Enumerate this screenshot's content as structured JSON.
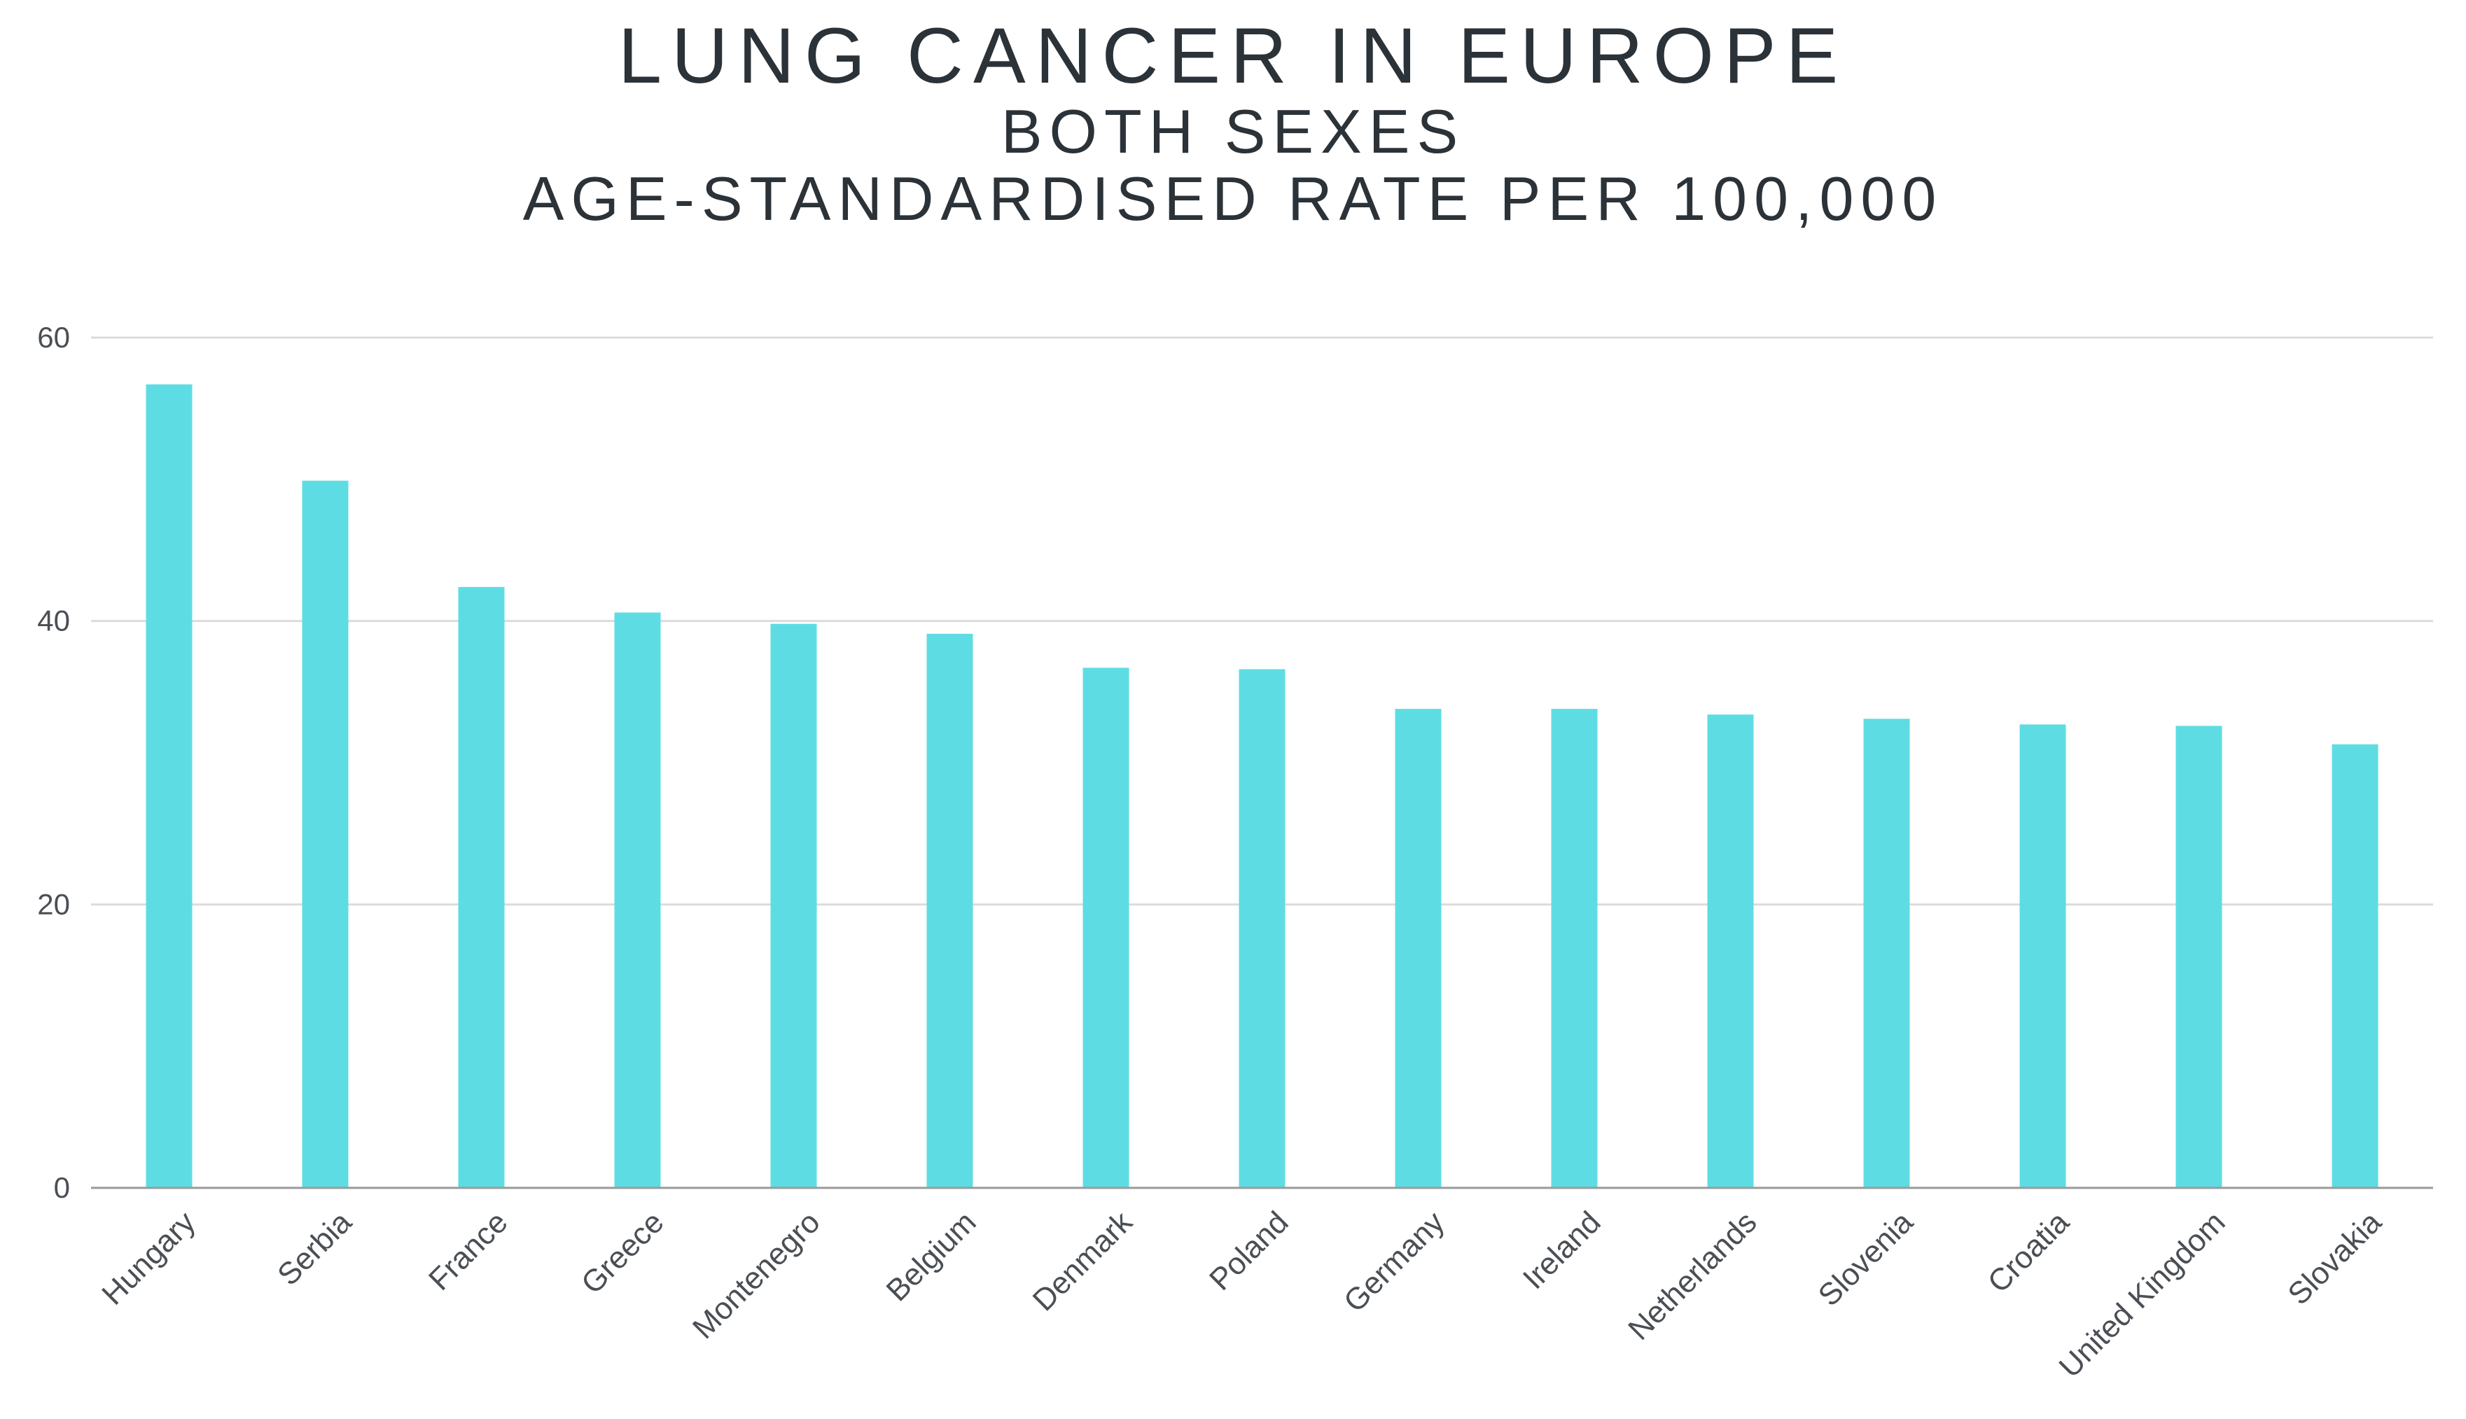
{
  "chart_data": {
    "type": "bar",
    "title": "LUNG CANCER IN EUROPE",
    "subtitle_lines": [
      "BOTH SEXES",
      "AGE-STANDARDISED RATE PER 100,000"
    ],
    "xlabel": "",
    "ylabel": "",
    "ylim": [
      0,
      60
    ],
    "yticks": [
      0,
      20,
      40,
      60
    ],
    "grid": true,
    "legend": "none",
    "categories": [
      "Hungary",
      "Serbia",
      "France",
      "Greece",
      "Montenegro",
      "Belgium",
      "Denmark",
      "Poland",
      "Germany",
      "Ireland",
      "Netherlands",
      "Slovenia",
      "Croatia",
      "United Kingdom",
      "Slovakia"
    ],
    "series": [
      {
        "name": "Age-standardised rate per 100,000",
        "color": "#5ddde3",
        "values": [
          56.7,
          49.9,
          42.4,
          40.6,
          39.8,
          39.1,
          36.7,
          36.6,
          33.8,
          33.8,
          33.4,
          33.1,
          32.7,
          32.6,
          31.3
        ]
      }
    ],
    "colors": {
      "bar": "#5ddde3",
      "grid": "#dcdcdc",
      "axis": "#9a9a9a",
      "text": "#2b3238"
    }
  }
}
